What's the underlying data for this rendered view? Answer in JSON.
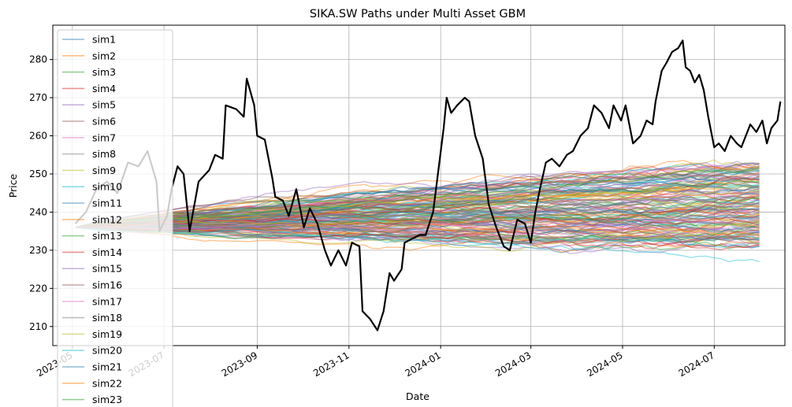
{
  "chart_data": {
    "type": "line",
    "title": "SIKA.SW Paths under Multi Asset GBM",
    "xlabel": "Date",
    "ylabel": "Price",
    "xlim": [
      "2023-04-18",
      "2024-08-17"
    ],
    "ylim": [
      205,
      289
    ],
    "x_ticks": [
      "2023-05",
      "2023-07",
      "2023-09",
      "2023-11",
      "2024-01",
      "2024-03",
      "2024-05",
      "2024-07"
    ],
    "y_ticks": [
      210,
      220,
      230,
      240,
      250,
      260,
      270,
      280
    ],
    "grid": true,
    "legend_placement": "upper left",
    "simulation": {
      "start_date": "2023-05-03",
      "end_date": "2024-07-31",
      "start_value": 236,
      "envelope_end_low": 231,
      "envelope_end_high": 253,
      "outlier_end_low": 227,
      "legend_labels": [
        "sim1",
        "sim2",
        "sim3",
        "sim4",
        "sim5",
        "sim6",
        "sim7",
        "sim8",
        "sim9",
        "sim10",
        "sim11",
        "sim12",
        "sim13",
        "sim14",
        "sim15",
        "sim16",
        "sim17",
        "sim18",
        "sim19",
        "sim20",
        "sim21",
        "sim22",
        "sim23"
      ],
      "colors": [
        "#1f77b4",
        "#ff7f0e",
        "#2ca02c",
        "#d62728",
        "#9467bd",
        "#8c564b",
        "#e377c2",
        "#7f7f7f",
        "#bcbd22",
        "#17becf"
      ]
    },
    "actual": {
      "color": "#000000",
      "points": [
        [
          "2023-05-03",
          237
        ],
        [
          "2023-05-10",
          240
        ],
        [
          "2023-05-17",
          246
        ],
        [
          "2023-05-24",
          248
        ],
        [
          "2023-05-31",
          245
        ],
        [
          "2023-06-07",
          253
        ],
        [
          "2023-06-14",
          252
        ],
        [
          "2023-06-20",
          256
        ],
        [
          "2023-06-26",
          248
        ],
        [
          "2023-06-28",
          235
        ],
        [
          "2023-07-03",
          239
        ],
        [
          "2023-07-06",
          246
        ],
        [
          "2023-07-10",
          252
        ],
        [
          "2023-07-14",
          250
        ],
        [
          "2023-07-18",
          235
        ],
        [
          "2023-07-24",
          248
        ],
        [
          "2023-07-31",
          251
        ],
        [
          "2023-08-04",
          255
        ],
        [
          "2023-08-09",
          254
        ],
        [
          "2023-08-11",
          268
        ],
        [
          "2023-08-18",
          267
        ],
        [
          "2023-08-23",
          265
        ],
        [
          "2023-08-25",
          275
        ],
        [
          "2023-08-30",
          268
        ],
        [
          "2023-09-01",
          260
        ],
        [
          "2023-09-06",
          259
        ],
        [
          "2023-09-11",
          249
        ],
        [
          "2023-09-13",
          244
        ],
        [
          "2023-09-18",
          243
        ],
        [
          "2023-09-22",
          239
        ],
        [
          "2023-09-27",
          246
        ],
        [
          "2023-10-02",
          236
        ],
        [
          "2023-10-06",
          241
        ],
        [
          "2023-10-11",
          237
        ],
        [
          "2023-10-16",
          230
        ],
        [
          "2023-10-20",
          226
        ],
        [
          "2023-10-25",
          230
        ],
        [
          "2023-10-30",
          226
        ],
        [
          "2023-11-03",
          232
        ],
        [
          "2023-11-08",
          231
        ],
        [
          "2023-11-10",
          214
        ],
        [
          "2023-11-15",
          212
        ],
        [
          "2023-11-20",
          209
        ],
        [
          "2023-11-24",
          214
        ],
        [
          "2023-11-28",
          224
        ],
        [
          "2023-12-01",
          222
        ],
        [
          "2023-12-06",
          225
        ],
        [
          "2023-12-08",
          232
        ],
        [
          "2023-12-13",
          233
        ],
        [
          "2023-12-18",
          234
        ],
        [
          "2023-12-22",
          234
        ],
        [
          "2023-12-27",
          240
        ],
        [
          "2024-01-03",
          262
        ],
        [
          "2024-01-05",
          270
        ],
        [
          "2024-01-08",
          266
        ],
        [
          "2024-01-12",
          268
        ],
        [
          "2024-01-17",
          270
        ],
        [
          "2024-01-20",
          269
        ],
        [
          "2024-01-24",
          260
        ],
        [
          "2024-01-29",
          254
        ],
        [
          "2024-02-02",
          242
        ],
        [
          "2024-02-07",
          236
        ],
        [
          "2024-02-12",
          231
        ],
        [
          "2024-02-16",
          230
        ],
        [
          "2024-02-21",
          238
        ],
        [
          "2024-02-26",
          237
        ],
        [
          "2024-03-01",
          232
        ],
        [
          "2024-03-04",
          240
        ],
        [
          "2024-03-07",
          246
        ],
        [
          "2024-03-11",
          253
        ],
        [
          "2024-03-15",
          254
        ],
        [
          "2024-03-20",
          252
        ],
        [
          "2024-03-25",
          255
        ],
        [
          "2024-03-29",
          256
        ],
        [
          "2024-04-03",
          260
        ],
        [
          "2024-04-08",
          262
        ],
        [
          "2024-04-12",
          268
        ],
        [
          "2024-04-17",
          266
        ],
        [
          "2024-04-22",
          262
        ],
        [
          "2024-04-25",
          268
        ],
        [
          "2024-04-30",
          264
        ],
        [
          "2024-05-03",
          268
        ],
        [
          "2024-05-08",
          258
        ],
        [
          "2024-05-13",
          260
        ],
        [
          "2024-05-17",
          264
        ],
        [
          "2024-05-21",
          263
        ],
        [
          "2024-05-23",
          269
        ],
        [
          "2024-05-27",
          277
        ],
        [
          "2024-05-30",
          279
        ],
        [
          "2024-06-03",
          282
        ],
        [
          "2024-06-07",
          283
        ],
        [
          "2024-06-10",
          285
        ],
        [
          "2024-06-12",
          278
        ],
        [
          "2024-06-15",
          277
        ],
        [
          "2024-06-18",
          274
        ],
        [
          "2024-06-21",
          276
        ],
        [
          "2024-06-24",
          272
        ],
        [
          "2024-06-27",
          265
        ],
        [
          "2024-07-01",
          257
        ],
        [
          "2024-07-04",
          258
        ],
        [
          "2024-07-08",
          256
        ],
        [
          "2024-07-12",
          260
        ],
        [
          "2024-07-16",
          258
        ],
        [
          "2024-07-19",
          257
        ],
        [
          "2024-07-22",
          260
        ],
        [
          "2024-07-25",
          263
        ],
        [
          "2024-07-29",
          261
        ],
        [
          "2024-08-02",
          264
        ],
        [
          "2024-08-05",
          258
        ],
        [
          "2024-08-08",
          262
        ],
        [
          "2024-08-12",
          264
        ],
        [
          "2024-08-14",
          269
        ]
      ]
    }
  }
}
